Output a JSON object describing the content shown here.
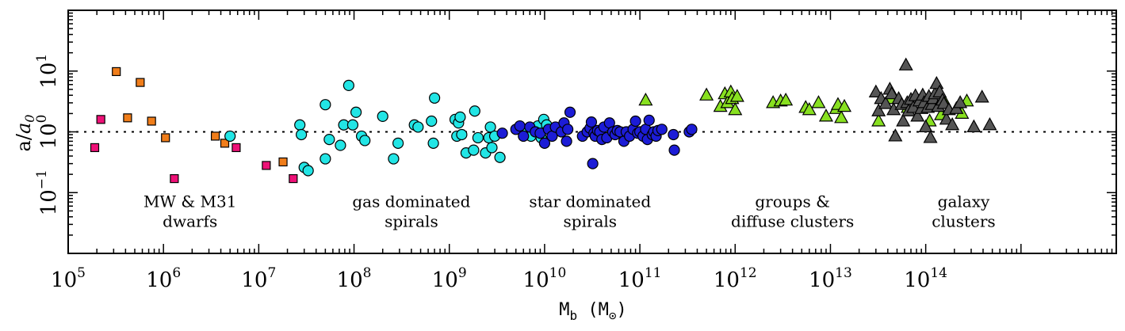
{
  "chart_data": {
    "type": "scatter",
    "xscale": "log",
    "yscale": "log",
    "xlim": [
      100000,
      10000000000000000
    ],
    "ylim": [
      0.01,
      100
    ],
    "x_ticks": [
      {
        "base": "10",
        "exp": "5",
        "value": 100000
      },
      {
        "base": "10",
        "exp": "6",
        "value": 1000000
      },
      {
        "base": "10",
        "exp": "7",
        "value": 10000000
      },
      {
        "base": "10",
        "exp": "8",
        "value": 100000000
      },
      {
        "base": "10",
        "exp": "9",
        "value": 1000000000
      },
      {
        "base": "10",
        "exp": "10",
        "value": 10000000000
      },
      {
        "base": "10",
        "exp": "11",
        "value": 100000000000
      },
      {
        "base": "10",
        "exp": "12",
        "value": 1000000000000
      },
      {
        "base": "10",
        "exp": "13",
        "value": 10000000000000
      },
      {
        "base": "10",
        "exp": "14",
        "value": 100000000000000
      }
    ],
    "y_ticks": [
      {
        "base": "10",
        "exp": "−1",
        "value": 0.1
      },
      {
        "base": "10",
        "exp": "0",
        "value": 1
      },
      {
        "base": "10",
        "exp": "1",
        "value": 10
      }
    ],
    "xlabel": {
      "main": "M",
      "sub": "b",
      "unit_open": " (M",
      "unit_sub": "⊙",
      "unit_close": ")"
    },
    "ylabel": {
      "num": "a",
      "slash": "/",
      "den": "a",
      "den_sub": "0"
    },
    "reference_line": {
      "y": 1,
      "style": "dotted"
    },
    "annotations": [
      {
        "lines": [
          "MW & M31",
          "dwarfs"
        ],
        "x": 1900000,
        "y": 0.058
      },
      {
        "lines": [
          "gas dominated",
          "spirals"
        ],
        "x": 400000000,
        "y": 0.058
      },
      {
        "lines": [
          "star dominated",
          "spirals"
        ],
        "x": 30000000000,
        "y": 0.058
      },
      {
        "lines": [
          "groups &",
          "diffuse clusters"
        ],
        "x": 4000000000000,
        "y": 0.058
      },
      {
        "lines": [
          "galaxy",
          "clusters"
        ],
        "x": 250000000000000,
        "y": 0.058
      }
    ],
    "series": [
      {
        "marker": "square",
        "color": "#ee1177",
        "points": [
          [
            190000,
            0.55
          ],
          [
            220000,
            1.6
          ],
          [
            1300000,
            0.17
          ],
          [
            5800000,
            0.55
          ],
          [
            12000000,
            0.28
          ],
          [
            23000000,
            0.17
          ]
        ]
      },
      {
        "marker": "square",
        "color": "#f07d1a",
        "points": [
          [
            320000,
            9.8
          ],
          [
            420000,
            1.7
          ],
          [
            570000,
            6.5
          ],
          [
            750000,
            1.5
          ],
          [
            1050000,
            0.8
          ],
          [
            3500000,
            0.85
          ],
          [
            4400000,
            0.65
          ],
          [
            18000000,
            0.32
          ]
        ]
      },
      {
        "marker": "circle",
        "color": "#22e5e5",
        "points": [
          [
            5000000,
            0.85
          ],
          [
            27000000,
            1.3
          ],
          [
            28000000,
            0.9
          ],
          [
            30000000,
            0.26
          ],
          [
            33000000,
            0.23
          ],
          [
            50000000,
            2.8
          ],
          [
            50000000,
            0.36
          ],
          [
            55000000,
            0.75
          ],
          [
            72000000,
            0.6
          ],
          [
            78000000,
            1.3
          ],
          [
            88000000,
            5.8
          ],
          [
            97000000,
            1.3
          ],
          [
            105000000,
            2.1
          ],
          [
            120000000,
            0.85
          ],
          [
            130000000,
            0.72
          ],
          [
            200000000,
            1.8
          ],
          [
            260000000,
            0.36
          ],
          [
            290000000,
            0.65
          ],
          [
            430000000,
            1.3
          ],
          [
            470000000,
            1.2
          ],
          [
            650000000,
            1.5
          ],
          [
            680000000,
            0.65
          ],
          [
            700000000,
            3.6
          ],
          [
            1150000000,
            1.6
          ],
          [
            1200000000,
            0.85
          ],
          [
            1250000000,
            1.4
          ],
          [
            1300000000,
            1.75
          ],
          [
            1350000000,
            0.9
          ],
          [
            1500000000,
            0.45
          ],
          [
            1800000000,
            0.5
          ],
          [
            1850000000,
            2.2
          ],
          [
            2000000000,
            0.8
          ],
          [
            2400000000,
            0.45
          ],
          [
            2600000000,
            0.8
          ],
          [
            2700000000,
            1.2
          ],
          [
            2800000000,
            0.55
          ],
          [
            3000000000,
            0.85
          ],
          [
            3400000000,
            0.38
          ],
          [
            6500000000,
            1.05
          ],
          [
            7200000000,
            0.85
          ],
          [
            8500000000,
            1.25
          ],
          [
            9200000000,
            0.8
          ],
          [
            9800000000,
            1.6
          ],
          [
            10500000000,
            1.3
          ]
        ]
      },
      {
        "marker": "circle",
        "color": "#1c1cd6",
        "points": [
          [
            3600000000,
            0.95
          ],
          [
            5000000000,
            1.1
          ],
          [
            5500000000,
            1.25
          ],
          [
            6000000000,
            0.85
          ],
          [
            7000000000,
            1.2
          ],
          [
            8000000000,
            1.0
          ],
          [
            9000000000,
            0.95
          ],
          [
            10000000000,
            0.65
          ],
          [
            11000000000,
            1.1
          ],
          [
            12000000000,
            0.85
          ],
          [
            13000000000,
            1.2
          ],
          [
            15000000000,
            1.0
          ],
          [
            16000000000,
            1.4
          ],
          [
            17000000000,
            0.7
          ],
          [
            17500000000,
            1.1
          ],
          [
            18500000000,
            2.1
          ],
          [
            25000000000,
            0.85
          ],
          [
            28000000000,
            1.0
          ],
          [
            30000000000,
            1.15
          ],
          [
            31000000000,
            1.45
          ],
          [
            32000000000,
            0.3
          ],
          [
            33000000000,
            0.95
          ],
          [
            34000000000,
            0.85
          ],
          [
            36000000000,
            1.05
          ],
          [
            38000000000,
            1.0
          ],
          [
            40000000000,
            0.75
          ],
          [
            42000000000,
            1.2
          ],
          [
            45000000000,
            0.8
          ],
          [
            48000000000,
            1.4
          ],
          [
            52000000000,
            1.0
          ],
          [
            55000000000,
            0.9
          ],
          [
            58000000000,
            1.05
          ],
          [
            62000000000,
            1.0
          ],
          [
            68000000000,
            0.7
          ],
          [
            72000000000,
            1.0
          ],
          [
            78000000000,
            0.85
          ],
          [
            85000000000,
            1.1
          ],
          [
            90000000000,
            1.5
          ],
          [
            95000000000,
            0.95
          ],
          [
            100000000000,
            1.0
          ],
          [
            108000000000,
            0.85
          ],
          [
            115000000000,
            1.1
          ],
          [
            120000000000,
            0.75
          ],
          [
            125000000000,
            1.55
          ],
          [
            135000000000,
            0.9
          ],
          [
            140000000000,
            1.0
          ],
          [
            148000000000,
            0.85
          ],
          [
            155000000000,
            1.05
          ],
          [
            170000000000,
            1.1
          ],
          [
            225000000000,
            0.9
          ],
          [
            230000000000,
            0.5
          ],
          [
            330000000000,
            1.0
          ],
          [
            350000000000,
            1.1
          ]
        ]
      },
      {
        "marker": "triangle",
        "color": "#88e020",
        "points": [
          [
            115000000000,
            3.3
          ],
          [
            500000000000,
            4.0
          ],
          [
            700000000000,
            2.6
          ],
          [
            780000000000,
            4.2
          ],
          [
            830000000000,
            3.0
          ],
          [
            900000000000,
            4.5
          ],
          [
            930000000000,
            3.5
          ],
          [
            1000000000000,
            2.3
          ],
          [
            1050000000000,
            3.8
          ],
          [
            2500000000000,
            3.0
          ],
          [
            3000000000000,
            3.2
          ],
          [
            3400000000000,
            3.3
          ],
          [
            5500000000000,
            2.5
          ],
          [
            6000000000000,
            2.3
          ],
          [
            7500000000000,
            3.0
          ],
          [
            9000000000000,
            1.8
          ],
          [
            11500000000000,
            2.4
          ],
          [
            12000000000000,
            2.8
          ],
          [
            13000000000000,
            1.7
          ],
          [
            14000000000000,
            2.6
          ],
          [
            32000000000000,
            1.5
          ],
          [
            43000000000000,
            3.5
          ],
          [
            65000000000000,
            2.5
          ],
          [
            110000000000000,
            1.5
          ],
          [
            145000000000000,
            1.9
          ],
          [
            160000000000000,
            3.0
          ],
          [
            240000000000000,
            2.0
          ],
          [
            270000000000000,
            3.2
          ]
        ]
      },
      {
        "marker": "triangle",
        "color": "#555555",
        "points": [
          [
            30000000000000,
            4.5
          ],
          [
            32000000000000,
            2.2
          ],
          [
            34000000000000,
            3.5
          ],
          [
            38000000000000,
            2.9
          ],
          [
            42000000000000,
            5.0
          ],
          [
            44000000000000,
            4.2
          ],
          [
            46000000000000,
            2.3
          ],
          [
            48000000000000,
            0.85
          ],
          [
            52000000000000,
            3.5
          ],
          [
            56000000000000,
            2.8
          ],
          [
            58000000000000,
            1.5
          ],
          [
            62000000000000,
            12.5
          ],
          [
            64000000000000,
            3.0
          ],
          [
            66000000000000,
            2.2
          ],
          [
            70000000000000,
            3.4
          ],
          [
            74000000000000,
            2.5
          ],
          [
            78000000000000,
            3.9
          ],
          [
            82000000000000,
            1.8
          ],
          [
            86000000000000,
            3.2
          ],
          [
            90000000000000,
            2.4
          ],
          [
            93000000000000,
            4.0
          ],
          [
            96000000000000,
            3.0
          ],
          [
            100000000000000,
            1.2
          ],
          [
            105000000000000,
            2.5
          ],
          [
            108000000000000,
            3.8
          ],
          [
            112000000000000,
            0.8
          ],
          [
            116000000000000,
            2.8
          ],
          [
            120000000000000,
            3.5
          ],
          [
            125000000000000,
            4.2
          ],
          [
            130000000000000,
            6.2
          ],
          [
            135000000000000,
            2.6
          ],
          [
            140000000000000,
            4.5
          ],
          [
            150000000000000,
            3.3
          ],
          [
            155000000000000,
            2.9
          ],
          [
            165000000000000,
            1.6
          ],
          [
            175000000000000,
            2.3
          ],
          [
            190000000000000,
            1.3
          ],
          [
            210000000000000,
            2.4
          ],
          [
            230000000000000,
            3.0
          ],
          [
            320000000000000,
            1.2
          ],
          [
            390000000000000,
            3.7
          ],
          [
            470000000000000,
            1.3
          ]
        ]
      }
    ]
  }
}
